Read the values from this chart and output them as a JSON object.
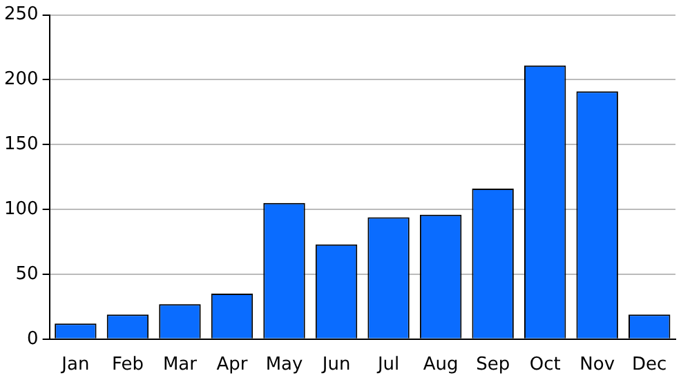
{
  "chart_data": {
    "type": "bar",
    "categories": [
      "Jan",
      "Feb",
      "Mar",
      "Apr",
      "May",
      "Jun",
      "Jul",
      "Aug",
      "Sep",
      "Oct",
      "Nov",
      "Dec"
    ],
    "values": [
      12,
      19,
      27,
      35,
      105,
      73,
      94,
      96,
      116,
      211,
      191,
      19
    ],
    "color": "#0a6cff",
    "ylim": [
      0,
      250
    ],
    "yticks": [
      0,
      50,
      100,
      150,
      200,
      250
    ],
    "grid": "y",
    "legend": false
  }
}
